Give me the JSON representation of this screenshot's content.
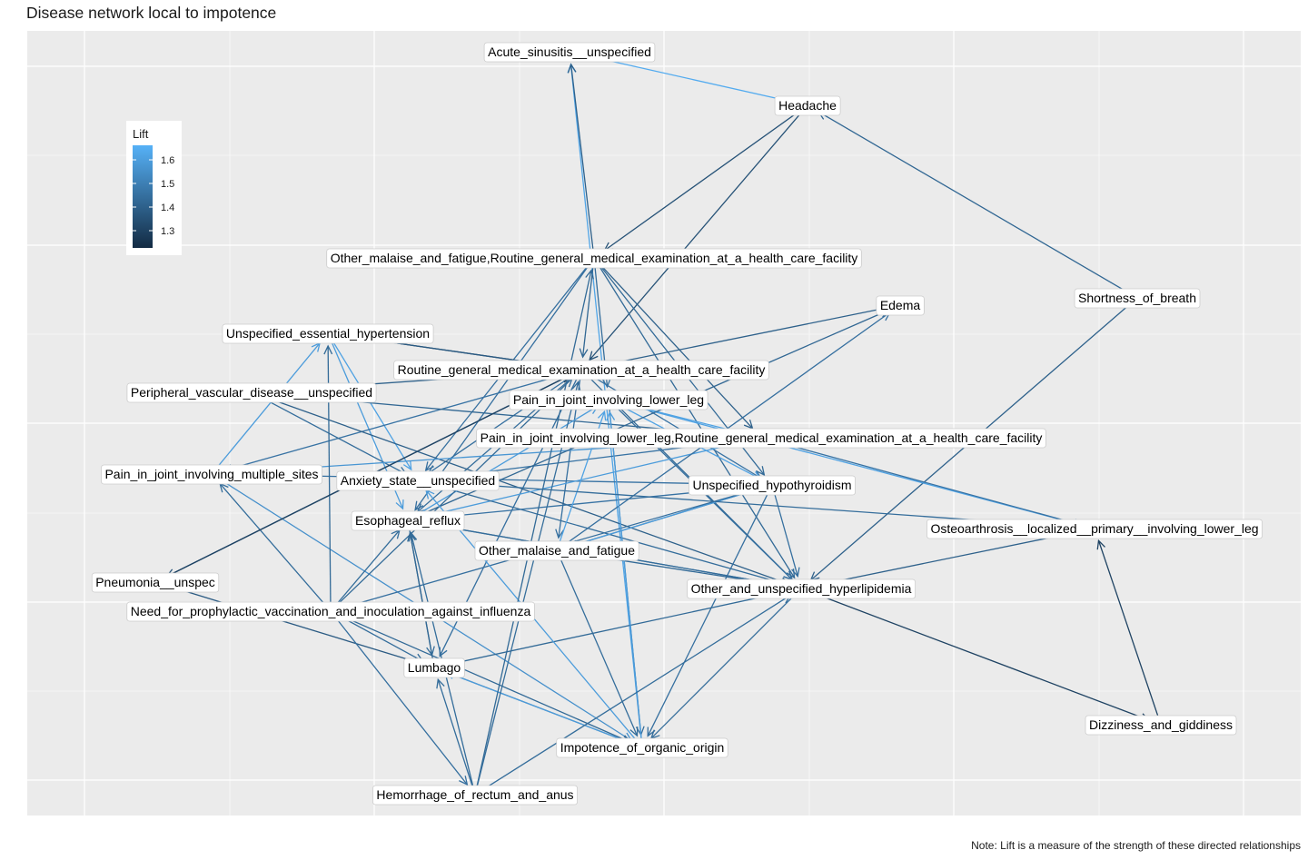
{
  "title": "Disease network local to impotence",
  "caption": "Note: Lift is a measure of the strength of these directed relationships",
  "legend": {
    "title": "Lift",
    "ticks": [
      "1.6",
      "1.5",
      "1.4",
      "1.3"
    ],
    "low_color": "#132B43",
    "high_color": "#56B1F7"
  },
  "nodes": [
    {
      "id": "acute",
      "label": "Acute_sinusitis__unspecified"
    },
    {
      "id": "headache",
      "label": "Headache"
    },
    {
      "id": "malaise_routine",
      "label": "Other_malaise_and_fatigue,Routine_general_medical_examination_at_a_health_care_facility"
    },
    {
      "id": "edema",
      "label": "Edema"
    },
    {
      "id": "sob",
      "label": "Shortness_of_breath"
    },
    {
      "id": "htn",
      "label": "Unspecified_essential_hypertension"
    },
    {
      "id": "routine",
      "label": "Routine_general_medical_examination_at_a_health_care_facility"
    },
    {
      "id": "pvd",
      "label": "Peripheral_vascular_disease__unspecified"
    },
    {
      "id": "legpain",
      "label": "Pain_in_joint_involving_lower_leg"
    },
    {
      "id": "legpain_routine",
      "label": "Pain_in_joint_involving_lower_leg,Routine_general_medical_examination_at_a_health_care_facility"
    },
    {
      "id": "multipain",
      "label": "Pain_in_joint_involving_multiple_sites"
    },
    {
      "id": "anxiety",
      "label": "Anxiety_state__unspecified"
    },
    {
      "id": "hypothyroid",
      "label": "Unspecified_hypothyroidism"
    },
    {
      "id": "reflux",
      "label": "Esophageal_reflux"
    },
    {
      "id": "osteo",
      "label": "Osteoarthrosis__localized__primary__involving_lower_leg"
    },
    {
      "id": "malaise",
      "label": "Other_malaise_and_fatigue"
    },
    {
      "id": "pneumonia",
      "label": "Pneumonia__unspec"
    },
    {
      "id": "lipid",
      "label": "Other_and_unspecified_hyperlipidemia"
    },
    {
      "id": "vaccine",
      "label": "Need_for_prophylactic_vaccination_and_inoculation_against_influenza"
    },
    {
      "id": "lumbago",
      "label": "Lumbago"
    },
    {
      "id": "dizzy",
      "label": "Dizziness_and_giddiness"
    },
    {
      "id": "impotence",
      "label": "Impotence_of_organic_origin"
    },
    {
      "id": "hemorrhage",
      "label": "Hemorrhage_of_rectum_and_anus"
    }
  ],
  "edges": [
    {
      "from": "acute",
      "to": "headache",
      "lift": 1.65
    },
    {
      "from": "impotence",
      "to": "acute",
      "lift": 1.63
    },
    {
      "from": "headache",
      "to": "malaise_routine",
      "lift": 1.35
    },
    {
      "from": "headache",
      "to": "routine",
      "lift": 1.35
    },
    {
      "from": "sob",
      "to": "headache",
      "lift": 1.42
    },
    {
      "from": "sob",
      "to": "lipid",
      "lift": 1.4
    },
    {
      "from": "malaise_routine",
      "to": "acute",
      "lift": 1.4
    },
    {
      "from": "malaise_routine",
      "to": "routine",
      "lift": 1.42
    },
    {
      "from": "malaise_routine",
      "to": "legpain",
      "lift": 1.44
    },
    {
      "from": "malaise_routine",
      "to": "hypothyroid",
      "lift": 1.43
    },
    {
      "from": "malaise_routine",
      "to": "anxiety",
      "lift": 1.45
    },
    {
      "from": "malaise_routine",
      "to": "legpain_routine",
      "lift": 1.4
    },
    {
      "from": "malaise_routine",
      "to": "lipid",
      "lift": 1.43
    },
    {
      "from": "malaise_routine",
      "to": "reflux",
      "lift": 1.45
    },
    {
      "from": "htn",
      "to": "anxiety",
      "lift": 1.62
    },
    {
      "from": "htn",
      "to": "reflux",
      "lift": 1.6
    },
    {
      "from": "htn",
      "to": "routine",
      "lift": 1.3
    },
    {
      "from": "routine",
      "to": "edema",
      "lift": 1.4
    },
    {
      "from": "routine",
      "to": "htn",
      "lift": 1.38
    },
    {
      "from": "routine",
      "to": "pvd",
      "lift": 1.4
    },
    {
      "from": "routine",
      "to": "pneumonia",
      "lift": 1.36
    },
    {
      "from": "routine",
      "to": "multipain",
      "lift": 1.46
    },
    {
      "from": "routine",
      "to": "anxiety",
      "lift": 1.45
    },
    {
      "from": "routine",
      "to": "reflux",
      "lift": 1.44
    },
    {
      "from": "routine",
      "to": "malaise",
      "lift": 1.45
    },
    {
      "from": "routine",
      "to": "lumbago",
      "lift": 1.45
    },
    {
      "from": "routine",
      "to": "lipid",
      "lift": 1.43
    },
    {
      "from": "routine",
      "to": "hypothyroid",
      "lift": 1.46
    },
    {
      "from": "pvd",
      "to": "anxiety",
      "lift": 1.44
    },
    {
      "from": "pvd",
      "to": "legpain_routine",
      "lift": 1.42
    },
    {
      "from": "pvd",
      "to": "lipid",
      "lift": 1.4
    },
    {
      "from": "multipain",
      "to": "htn",
      "lift": 1.6
    },
    {
      "from": "multipain",
      "to": "legpain_routine",
      "lift": 1.58
    },
    {
      "from": "multipain",
      "to": "hypothyroid",
      "lift": 1.46
    },
    {
      "from": "multipain",
      "to": "impotence",
      "lift": 1.56
    },
    {
      "from": "legpain",
      "to": "hypothyroid",
      "lift": 1.62
    },
    {
      "from": "legpain",
      "to": "lipid",
      "lift": 1.45
    },
    {
      "from": "legpain",
      "to": "osteo",
      "lift": 1.62
    },
    {
      "from": "legpain",
      "to": "impotence",
      "lift": 1.44
    },
    {
      "from": "legpain_routine",
      "to": "legpain",
      "lift": 1.62
    },
    {
      "from": "legpain_routine",
      "to": "osteo",
      "lift": 1.46
    },
    {
      "from": "legpain_routine",
      "to": "reflux",
      "lift": 1.6
    },
    {
      "from": "anxiety",
      "to": "lipid",
      "lift": 1.44
    },
    {
      "from": "anxiety",
      "to": "legpain_routine",
      "lift": 1.46
    },
    {
      "from": "hypothyroid",
      "to": "lipid",
      "lift": 1.45
    },
    {
      "from": "hypothyroid",
      "to": "reflux",
      "lift": 1.46
    },
    {
      "from": "hypothyroid",
      "to": "malaise",
      "lift": 1.46
    },
    {
      "from": "hypothyroid",
      "to": "impotence",
      "lift": 1.45
    },
    {
      "from": "reflux",
      "to": "edema",
      "lift": 1.42
    },
    {
      "from": "reflux",
      "to": "lipid",
      "lift": 1.44
    },
    {
      "from": "reflux",
      "to": "lumbago",
      "lift": 1.44
    },
    {
      "from": "reflux",
      "to": "legpain",
      "lift": 1.6
    },
    {
      "from": "malaise",
      "to": "legpain",
      "lift": 1.62
    },
    {
      "from": "malaise",
      "to": "edema",
      "lift": 1.45
    },
    {
      "from": "malaise",
      "to": "impotence",
      "lift": 1.44
    },
    {
      "from": "malaise",
      "to": "lipid",
      "lift": 1.43
    },
    {
      "from": "malaise",
      "to": "hypothyroid",
      "lift": 1.6
    },
    {
      "from": "pneumonia",
      "to": "lumbago",
      "lift": 1.38
    },
    {
      "from": "lipid",
      "to": "reflux",
      "lift": 1.44
    },
    {
      "from": "lipid",
      "to": "lumbago",
      "lift": 1.43
    },
    {
      "from": "lipid",
      "to": "impotence",
      "lift": 1.44
    },
    {
      "from": "lipid",
      "to": "dizzy",
      "lift": 1.3
    },
    {
      "from": "lipid",
      "to": "osteo",
      "lift": 1.4
    },
    {
      "from": "vaccine",
      "to": "multipain",
      "lift": 1.44
    },
    {
      "from": "vaccine",
      "to": "reflux",
      "lift": 1.44
    },
    {
      "from": "vaccine",
      "to": "routine",
      "lift": 1.43
    },
    {
      "from": "vaccine",
      "to": "htn",
      "lift": 1.43
    },
    {
      "from": "vaccine",
      "to": "lumbago",
      "lift": 1.44
    },
    {
      "from": "vaccine",
      "to": "hemorrhage",
      "lift": 1.45
    },
    {
      "from": "vaccine",
      "to": "hypothyroid",
      "lift": 1.45
    },
    {
      "from": "vaccine",
      "to": "impotence",
      "lift": 1.43
    },
    {
      "from": "lumbago",
      "to": "impotence",
      "lift": 1.44
    },
    {
      "from": "lumbago",
      "to": "reflux",
      "lift": 1.42
    },
    {
      "from": "impotence",
      "to": "lumbago",
      "lift": 1.6
    },
    {
      "from": "impotence",
      "to": "legpain",
      "lift": 1.6
    },
    {
      "from": "impotence",
      "to": "anxiety",
      "lift": 1.6
    },
    {
      "from": "dizzy",
      "to": "osteo",
      "lift": 1.3
    },
    {
      "from": "hemorrhage",
      "to": "reflux",
      "lift": 1.44
    },
    {
      "from": "hemorrhage",
      "to": "malaise_routine",
      "lift": 1.43
    },
    {
      "from": "hemorrhage",
      "to": "lipid",
      "lift": 1.44
    },
    {
      "from": "hemorrhage",
      "to": "routine",
      "lift": 1.44
    },
    {
      "from": "hemorrhage",
      "to": "lumbago",
      "lift": 1.44
    },
    {
      "from": "pneumonia",
      "to": "routine",
      "lift": 1.3
    },
    {
      "from": "anxiety",
      "to": "osteo",
      "lift": 1.44
    }
  ]
}
